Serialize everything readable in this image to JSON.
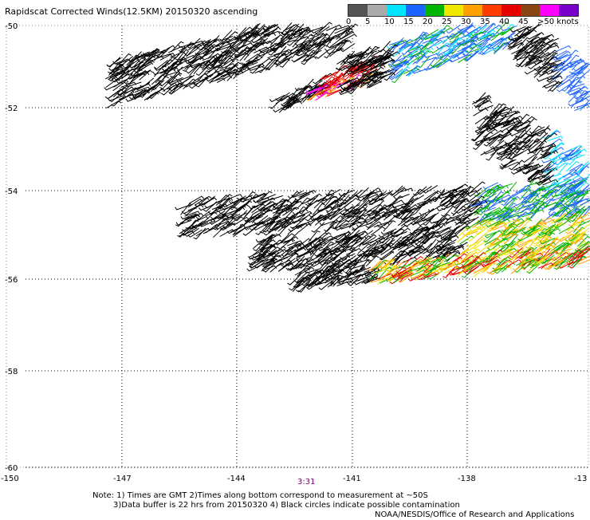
{
  "title": "Rapidscat Corrected Winds(12.5KM) 20150320 ascending",
  "legend": {
    "labels": [
      "0",
      "5",
      "10",
      "15",
      "20",
      "25",
      "30",
      "35",
      "40",
      "45",
      ">50 knots"
    ],
    "colors": [
      "#555555",
      "#aaaaaa",
      "#00e5ff",
      "#1e64ff",
      "#00b400",
      "#f0e600",
      "#ffa000",
      "#ff3c00",
      "#e60000",
      "#8b4513",
      "#ff00ff",
      "#7800c8"
    ]
  },
  "map": {
    "lat_labels": [
      "-50",
      "-52",
      "-54",
      "-56",
      "-58",
      "-60"
    ],
    "lon_labels": [
      "-150",
      "-147",
      "-144",
      "-141",
      "-138",
      "-13"
    ]
  },
  "time_label": "3:31",
  "notes": {
    "line1": "Note: 1) Times are GMT 2)Times along bottom correspond to measurement at ~50S",
    "line2": "3)Data buffer is 22 hrs from 20150320 4) Black circles indicate possible contamination",
    "line3": "NOAA/NESDIS/Office of Research and Applications"
  }
}
